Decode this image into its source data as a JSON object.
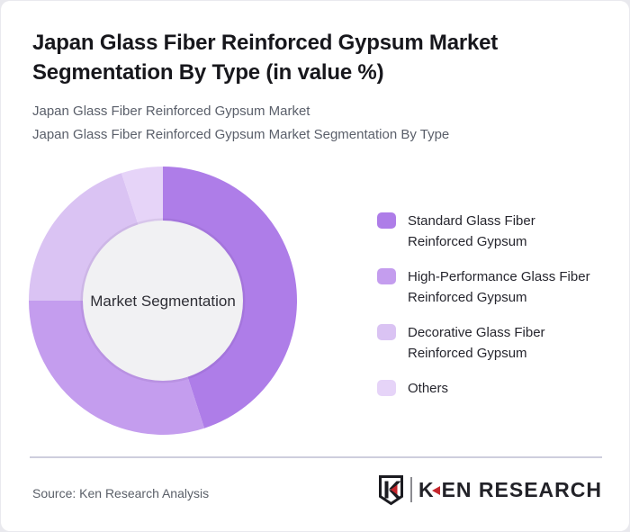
{
  "page": {
    "title": "Japan Glass Fiber Reinforced Gypsum Market Segmentation By Type (in value %)",
    "subtitle_line1": "Japan Glass Fiber Reinforced Gypsum Market",
    "subtitle_line2": "Japan Glass Fiber Reinforced Gypsum Market Segmentation By Type"
  },
  "chart_data": {
    "type": "pie",
    "subtype": "donut",
    "title": "Japan Glass Fiber Reinforced Gypsum Market Segmentation By Type (in value %)",
    "center_label": "Market Segmentation",
    "value_unit": "value %",
    "categories": [
      "Standard Glass Fiber Reinforced Gypsum",
      "High-Performance Glass Fiber Reinforced Gypsum",
      "Decorative Glass Fiber Reinforced Gypsum",
      "Others"
    ],
    "values": [
      45,
      30,
      20,
      5
    ],
    "colors": [
      "#ae7de8",
      "#c49dee",
      "#dac3f3",
      "#e6d4f8"
    ],
    "start_angle_deg": 0,
    "direction": "clockwise",
    "legend_position": "right",
    "inner_hole_color": "#f1f1f3"
  },
  "legend": {
    "items": [
      {
        "lines": [
          "Standard Glass Fiber",
          "Reinforced Gypsum"
        ],
        "color": "#ae7de8"
      },
      {
        "lines": [
          "High-Performance Glass Fiber",
          "Reinforced Gypsum"
        ],
        "color": "#c49dee"
      },
      {
        "lines": [
          "Decorative Glass Fiber",
          "Reinforced Gypsum"
        ],
        "color": "#dac3f3"
      },
      {
        "lines": [
          "Others"
        ],
        "color": "#e6d4f8"
      }
    ]
  },
  "footer": {
    "source": "Source: Ken Research Analysis",
    "logo": {
      "badge_letter": "K",
      "wordmark_first_letter": "K",
      "wordmark_rest": "EN RESEARCH",
      "accent_color": "#c5262c",
      "text_color": "#222228"
    }
  }
}
